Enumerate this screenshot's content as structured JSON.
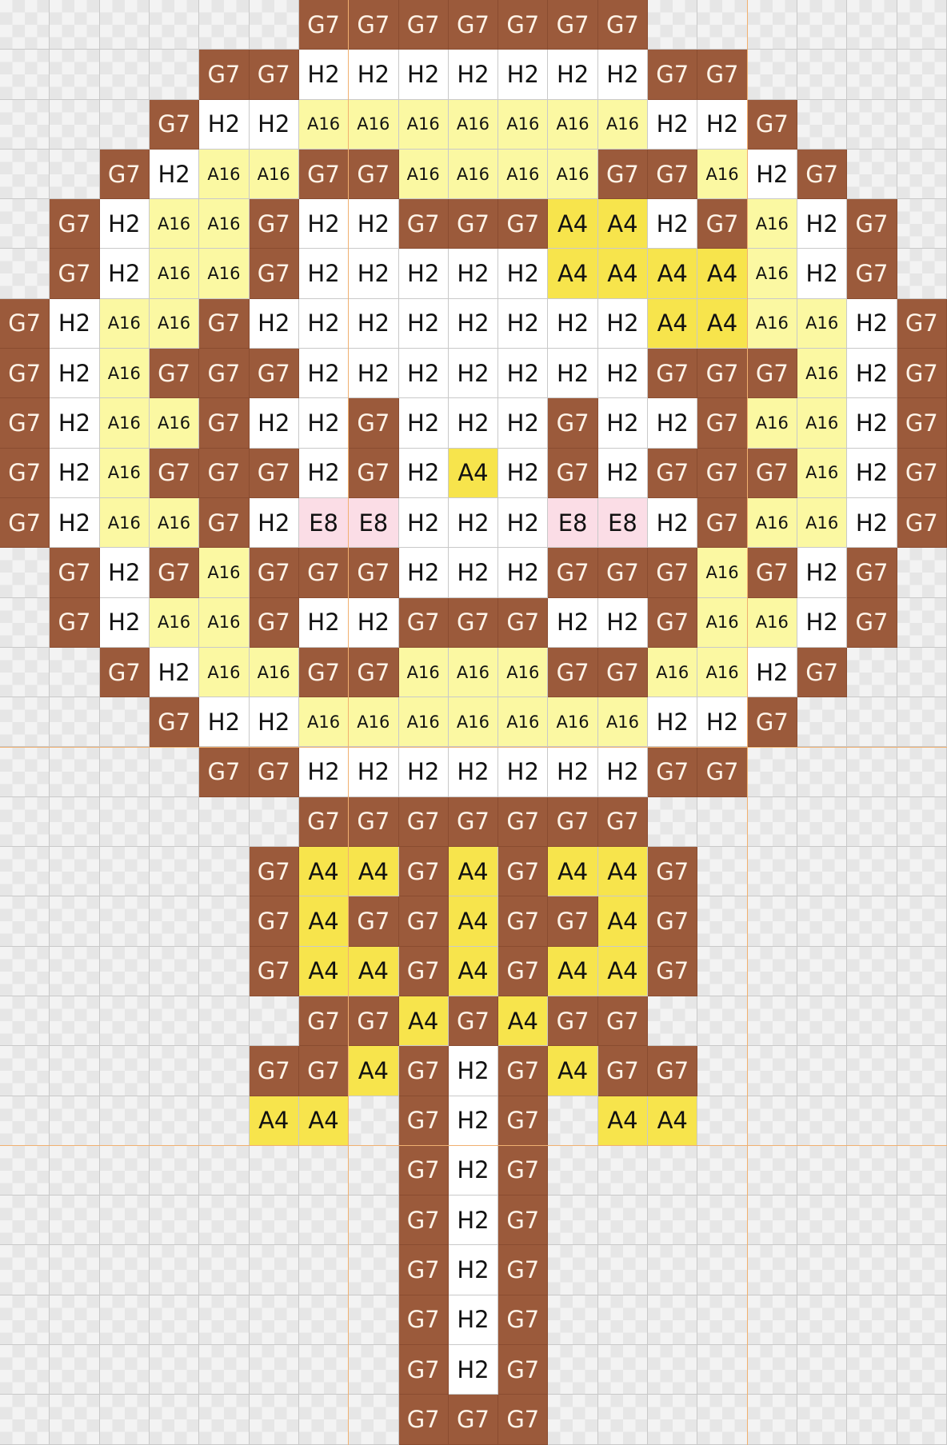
{
  "palette": {
    "G7": "#9b5a3b",
    "H2": "#ffffff",
    "A16": "#fbf8a2",
    "A4": "#f7e44c",
    "E8": "#fbdde6"
  },
  "grid": [
    [
      ".",
      ".",
      ".",
      ".",
      ".",
      ".",
      "G7",
      "G7",
      "G7",
      "G7",
      "G7",
      "G7",
      "G7",
      ".",
      ".",
      ".",
      ".",
      ".",
      "."
    ],
    [
      ".",
      ".",
      ".",
      ".",
      "G7",
      "G7",
      "H2",
      "H2",
      "H2",
      "H2",
      "H2",
      "H2",
      "H2",
      "G7",
      "G7",
      ".",
      ".",
      ".",
      "."
    ],
    [
      ".",
      ".",
      ".",
      "G7",
      "H2",
      "H2",
      "A16",
      "A16",
      "A16",
      "A16",
      "A16",
      "A16",
      "A16",
      "H2",
      "H2",
      "G7",
      ".",
      ".",
      "."
    ],
    [
      ".",
      ".",
      "G7",
      "H2",
      "A16",
      "A16",
      "G7",
      "G7",
      "A16",
      "A16",
      "A16",
      "A16",
      "G7",
      "G7",
      "A16",
      "H2",
      "G7",
      ".",
      "."
    ],
    [
      ".",
      "G7",
      "H2",
      "A16",
      "A16",
      "G7",
      "H2",
      "H2",
      "G7",
      "G7",
      "G7",
      "A4",
      "A4",
      "H2",
      "G7",
      "A16",
      "H2",
      "G7",
      "."
    ],
    [
      ".",
      "G7",
      "H2",
      "A16",
      "A16",
      "G7",
      "H2",
      "H2",
      "H2",
      "H2",
      "H2",
      "A4",
      "A4",
      "A4",
      "A4",
      "A16",
      "H2",
      "G7",
      "."
    ],
    [
      "G7",
      "H2",
      "A16",
      "A16",
      "G7",
      "H2",
      "H2",
      "H2",
      "H2",
      "H2",
      "H2",
      "H2",
      "H2",
      "A4",
      "A4",
      "A16",
      "A16",
      "H2",
      "G7"
    ],
    [
      "G7",
      "H2",
      "A16",
      "G7",
      "G7",
      "G7",
      "H2",
      "H2",
      "H2",
      "H2",
      "H2",
      "H2",
      "H2",
      "G7",
      "G7",
      "G7",
      "A16",
      "H2",
      "G7"
    ],
    [
      "G7",
      "H2",
      "A16",
      "A16",
      "G7",
      "H2",
      "H2",
      "G7",
      "H2",
      "H2",
      "H2",
      "G7",
      "H2",
      "H2",
      "G7",
      "A16",
      "A16",
      "H2",
      "G7"
    ],
    [
      "G7",
      "H2",
      "A16",
      "G7",
      "G7",
      "G7",
      "H2",
      "G7",
      "H2",
      "A4",
      "H2",
      "G7",
      "H2",
      "G7",
      "G7",
      "G7",
      "A16",
      "H2",
      "G7"
    ],
    [
      "G7",
      "H2",
      "A16",
      "A16",
      "G7",
      "H2",
      "E8",
      "E8",
      "H2",
      "H2",
      "H2",
      "E8",
      "E8",
      "H2",
      "G7",
      "A16",
      "A16",
      "H2",
      "G7"
    ],
    [
      ".",
      "G7",
      "H2",
      "G7",
      "A16",
      "G7",
      "G7",
      "G7",
      "H2",
      "H2",
      "H2",
      "G7",
      "G7",
      "G7",
      "A16",
      "G7",
      "H2",
      "G7",
      "."
    ],
    [
      ".",
      "G7",
      "H2",
      "A16",
      "A16",
      "G7",
      "H2",
      "H2",
      "G7",
      "G7",
      "G7",
      "H2",
      "H2",
      "G7",
      "A16",
      "A16",
      "H2",
      "G7",
      "."
    ],
    [
      ".",
      ".",
      "G7",
      "H2",
      "A16",
      "A16",
      "G7",
      "G7",
      "A16",
      "A16",
      "A16",
      "G7",
      "G7",
      "A16",
      "A16",
      "H2",
      "G7",
      ".",
      "."
    ],
    [
      ".",
      ".",
      ".",
      "G7",
      "H2",
      "H2",
      "A16",
      "A16",
      "A16",
      "A16",
      "A16",
      "A16",
      "A16",
      "H2",
      "H2",
      "G7",
      ".",
      ".",
      "."
    ],
    [
      ".",
      ".",
      ".",
      ".",
      "G7",
      "G7",
      "H2",
      "H2",
      "H2",
      "H2",
      "H2",
      "H2",
      "H2",
      "G7",
      "G7",
      ".",
      ".",
      ".",
      "."
    ],
    [
      ".",
      ".",
      ".",
      ".",
      ".",
      ".",
      "G7",
      "G7",
      "G7",
      "G7",
      "G7",
      "G7",
      "G7",
      ".",
      ".",
      ".",
      ".",
      ".",
      "."
    ],
    [
      ".",
      ".",
      ".",
      ".",
      ".",
      "G7",
      "A4",
      "A4",
      "G7",
      "A4",
      "G7",
      "A4",
      "A4",
      "G7",
      ".",
      ".",
      ".",
      ".",
      "."
    ],
    [
      ".",
      ".",
      ".",
      ".",
      ".",
      "G7",
      "A4",
      "G7",
      "G7",
      "A4",
      "G7",
      "G7",
      "A4",
      "G7",
      ".",
      ".",
      ".",
      ".",
      "."
    ],
    [
      ".",
      ".",
      ".",
      ".",
      ".",
      "G7",
      "A4",
      "A4",
      "G7",
      "A4",
      "G7",
      "A4",
      "A4",
      "G7",
      ".",
      ".",
      ".",
      ".",
      "."
    ],
    [
      ".",
      ".",
      ".",
      ".",
      ".",
      ".",
      "G7",
      "G7",
      "A4",
      "G7",
      "A4",
      "G7",
      "G7",
      ".",
      ".",
      ".",
      ".",
      ".",
      "."
    ],
    [
      ".",
      ".",
      ".",
      ".",
      ".",
      "G7",
      "G7",
      "A4",
      "G7",
      "H2",
      "G7",
      "A4",
      "G7",
      "G7",
      ".",
      ".",
      ".",
      ".",
      "."
    ],
    [
      ".",
      ".",
      ".",
      ".",
      ".",
      "A4",
      "A4",
      ".",
      "G7",
      "H2",
      "G7",
      ".",
      "A4",
      "A4",
      ".",
      ".",
      ".",
      ".",
      "."
    ],
    [
      ".",
      ".",
      ".",
      ".",
      ".",
      ".",
      ".",
      ".",
      "G7",
      "H2",
      "G7",
      ".",
      ".",
      ".",
      ".",
      ".",
      ".",
      ".",
      "."
    ],
    [
      ".",
      ".",
      ".",
      ".",
      ".",
      ".",
      ".",
      ".",
      "G7",
      "H2",
      "G7",
      ".",
      ".",
      ".",
      ".",
      ".",
      ".",
      ".",
      "."
    ],
    [
      ".",
      ".",
      ".",
      ".",
      ".",
      ".",
      ".",
      ".",
      "G7",
      "H2",
      "G7",
      ".",
      ".",
      ".",
      ".",
      ".",
      ".",
      ".",
      "."
    ],
    [
      ".",
      ".",
      ".",
      ".",
      ".",
      ".",
      ".",
      ".",
      "G7",
      "H2",
      "G7",
      ".",
      ".",
      ".",
      ".",
      ".",
      ".",
      ".",
      "."
    ],
    [
      ".",
      ".",
      ".",
      ".",
      ".",
      ".",
      ".",
      ".",
      "G7",
      "H2",
      "G7",
      ".",
      ".",
      ".",
      ".",
      ".",
      ".",
      ".",
      "."
    ],
    [
      ".",
      ".",
      ".",
      ".",
      ".",
      ".",
      ".",
      ".",
      "G7",
      "G7",
      "G7",
      ".",
      ".",
      ".",
      ".",
      ".",
      ".",
      ".",
      "."
    ]
  ]
}
